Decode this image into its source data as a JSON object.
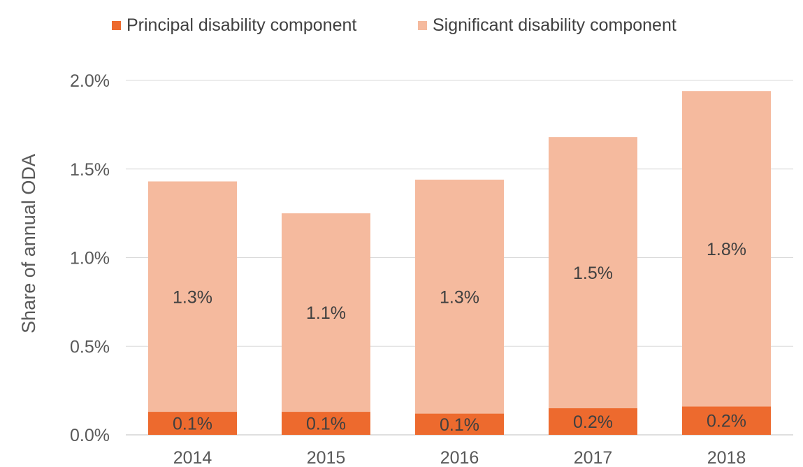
{
  "chart_data": {
    "type": "bar",
    "stacked": true,
    "categories": [
      "2014",
      "2015",
      "2016",
      "2017",
      "2018"
    ],
    "series": [
      {
        "name": "Principal disability component",
        "color": "#ED6A2E",
        "values": [
          0.13,
          0.13,
          0.12,
          0.15,
          0.16
        ],
        "labels": [
          "0.1%",
          "0.1%",
          "0.1%",
          "0.2%",
          "0.2%"
        ]
      },
      {
        "name": "Significant disability component",
        "color": "#F5BA9E",
        "values": [
          1.3,
          1.12,
          1.32,
          1.53,
          1.78
        ],
        "labels": [
          "1.3%",
          "1.1%",
          "1.3%",
          "1.5%",
          "1.8%"
        ]
      }
    ],
    "ylabel": "Share of annual ODA",
    "yticks": [
      "0.0%",
      "0.5%",
      "1.0%",
      "1.5%",
      "2.0%"
    ],
    "ytick_values": [
      0,
      0.5,
      1.0,
      1.5,
      2.0
    ],
    "ylim": [
      0,
      2.0
    ],
    "grid": true,
    "legend": "top"
  }
}
